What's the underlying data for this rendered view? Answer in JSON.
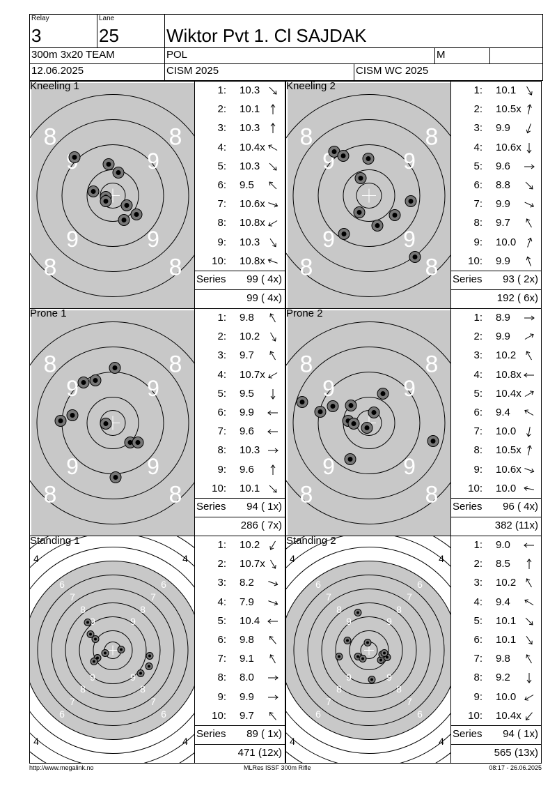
{
  "header": {
    "relay_label": "Relay",
    "relay_value": "3",
    "lane_label": "Lane",
    "lane_value": "25",
    "shooter_name": "Wiktor Pvt 1. Cl SAJDAK",
    "event": "300m 3x20 TEAM",
    "nation": "POL",
    "gender": "M",
    "date": "12.06.2025",
    "competition": "CISM 2025",
    "match": "CISM WC 2025"
  },
  "panels": [
    {
      "title": "Kneeling 1",
      "type": "prone",
      "shots": [
        {
          "n": "1:",
          "v": "10.3",
          "dir": 135
        },
        {
          "n": "2:",
          "v": "10.1",
          "dir": 0
        },
        {
          "n": "3:",
          "v": "10.3",
          "dir": 0
        },
        {
          "n": "4:",
          "v": "10.4x",
          "dir": 300
        },
        {
          "n": "5:",
          "v": "10.3",
          "dir": 135
        },
        {
          "n": "6:",
          "v": "9.5",
          "dir": 315
        },
        {
          "n": "7:",
          "v": "10.6x",
          "dir": 110
        },
        {
          "n": "8:",
          "v": "10.8x",
          "dir": 240
        },
        {
          "n": "9:",
          "v": "10.3",
          "dir": 145
        },
        {
          "n": "10:",
          "v": "10.8x",
          "dir": 290
        }
      ],
      "series_label": "Series",
      "series": "99 ( 4x)",
      "total": "99 ( 4x)",
      "holes": [
        [
          -55,
          -55
        ],
        [
          -6,
          -45
        ],
        [
          8,
          -33
        ],
        [
          -28,
          -6
        ],
        [
          -10,
          2
        ],
        [
          -10,
          8
        ],
        [
          20,
          14
        ],
        [
          34,
          27
        ],
        [
          16,
          35
        ]
      ]
    },
    {
      "title": "Kneeling 2",
      "type": "prone",
      "shots": [
        {
          "n": "1:",
          "v": "10.1",
          "dir": 150
        },
        {
          "n": "2:",
          "v": "10.5x",
          "dir": 10
        },
        {
          "n": "3:",
          "v": "9.9",
          "dir": 200
        },
        {
          "n": "4:",
          "v": "10.6x",
          "dir": 180
        },
        {
          "n": "5:",
          "v": "9.6",
          "dir": 90
        },
        {
          "n": "6:",
          "v": "8.8",
          "dir": 135
        },
        {
          "n": "7:",
          "v": "9.9",
          "dir": 115
        },
        {
          "n": "8:",
          "v": "9.7",
          "dir": 330
        },
        {
          "n": "9:",
          "v": "10.0",
          "dir": 20
        },
        {
          "n": "10:",
          "v": "9.9",
          "dir": 340
        }
      ],
      "series_label": "Series",
      "series": "93 ( 2x)",
      "total": "192 ( 6x)",
      "holes": [
        [
          -50,
          -63
        ],
        [
          -37,
          -57
        ],
        [
          -1,
          -53
        ],
        [
          -12,
          -25
        ],
        [
          -14,
          24
        ],
        [
          60,
          8
        ],
        [
          37,
          28
        ],
        [
          12,
          43
        ],
        [
          -36,
          55
        ],
        [
          66,
          88
        ]
      ]
    },
    {
      "title": "Prone 1",
      "type": "prone",
      "shots": [
        {
          "n": "1:",
          "v": "9.8",
          "dir": 330
        },
        {
          "n": "2:",
          "v": "10.2",
          "dir": 150
        },
        {
          "n": "3:",
          "v": "9.7",
          "dir": 330
        },
        {
          "n": "4:",
          "v": "10.7x",
          "dir": 240
        },
        {
          "n": "5:",
          "v": "9.5",
          "dir": 180
        },
        {
          "n": "6:",
          "v": "9.9",
          "dir": 270
        },
        {
          "n": "7:",
          "v": "9.6",
          "dir": 270
        },
        {
          "n": "8:",
          "v": "10.3",
          "dir": 90
        },
        {
          "n": "9:",
          "v": "9.6",
          "dir": 0
        },
        {
          "n": "10:",
          "v": "10.1",
          "dir": 135
        }
      ],
      "series_label": "Series",
      "series": "94 ( 1x)",
      "total": "286 ( 7x)",
      "holes": [
        [
          3,
          -79
        ],
        [
          -42,
          -58
        ],
        [
          -25,
          -61
        ],
        [
          -58,
          -11
        ],
        [
          -75,
          -3
        ],
        [
          -10,
          1
        ],
        [
          25,
          28
        ],
        [
          36,
          28
        ],
        [
          4,
          78
        ]
      ]
    },
    {
      "title": "Prone 2",
      "type": "prone",
      "shots": [
        {
          "n": "1:",
          "v": "8.9",
          "dir": 90
        },
        {
          "n": "2:",
          "v": "9.9",
          "dir": 60
        },
        {
          "n": "3:",
          "v": "10.2",
          "dir": 330
        },
        {
          "n": "4:",
          "v": "10.8x",
          "dir": 270
        },
        {
          "n": "5:",
          "v": "10.4x",
          "dir": 60
        },
        {
          "n": "6:",
          "v": "9.4",
          "dir": 300
        },
        {
          "n": "7:",
          "v": "10.0",
          "dir": 190
        },
        {
          "n": "8:",
          "v": "10.5x",
          "dir": 10
        },
        {
          "n": "9:",
          "v": "10.6x",
          "dir": 110
        },
        {
          "n": "10:",
          "v": "10.0",
          "dir": 280
        }
      ],
      "series_label": "Series",
      "series": "96 ( 4x)",
      "total": "382 (11x)",
      "holes": [
        [
          -96,
          -30
        ],
        [
          -70,
          -16
        ],
        [
          -52,
          -24
        ],
        [
          -26,
          -25
        ],
        [
          7,
          -15
        ],
        [
          20,
          -42
        ],
        [
          -30,
          -3
        ],
        [
          -22,
          1
        ],
        [
          -3,
          7
        ],
        [
          -27,
          52
        ],
        [
          92,
          26
        ]
      ]
    },
    {
      "title": "Standing 1",
      "type": "standing",
      "shots": [
        {
          "n": "1:",
          "v": "10.2",
          "dir": 210
        },
        {
          "n": "2:",
          "v": "10.7x",
          "dir": 150
        },
        {
          "n": "3:",
          "v": "8.2",
          "dir": 110
        },
        {
          "n": "4:",
          "v": "7.9",
          "dir": 110
        },
        {
          "n": "5:",
          "v": "10.4",
          "dir": 270
        },
        {
          "n": "6:",
          "v": "9.8",
          "dir": 320
        },
        {
          "n": "7:",
          "v": "9.1",
          "dir": 330
        },
        {
          "n": "8:",
          "v": "8.0",
          "dir": 90
        },
        {
          "n": "9:",
          "v": "9.9",
          "dir": 90
        },
        {
          "n": "10:",
          "v": "9.7",
          "dir": 320
        }
      ],
      "series_label": "Series",
      "series": "89 ( 1x)",
      "total": "471 (12x)",
      "holes": [
        [
          -36,
          -40
        ],
        [
          -32,
          -23
        ],
        [
          -25,
          -16
        ],
        [
          -11,
          4
        ],
        [
          12,
          -1
        ],
        [
          -22,
          11
        ],
        [
          -27,
          16
        ],
        [
          53,
          8
        ],
        [
          52,
          23
        ],
        [
          40,
          33
        ]
      ]
    },
    {
      "title": "Standing 2",
      "type": "standing",
      "shots": [
        {
          "n": "1:",
          "v": "9.0",
          "dir": 270
        },
        {
          "n": "2:",
          "v": "8.5",
          "dir": 0
        },
        {
          "n": "3:",
          "v": "10.2",
          "dir": 330
        },
        {
          "n": "4:",
          "v": "9.4",
          "dir": 300
        },
        {
          "n": "5:",
          "v": "10.1",
          "dir": 135
        },
        {
          "n": "6:",
          "v": "10.1",
          "dir": 145
        },
        {
          "n": "7:",
          "v": "9.8",
          "dir": 330
        },
        {
          "n": "8:",
          "v": "9.2",
          "dir": 180
        },
        {
          "n": "9:",
          "v": "10.0",
          "dir": 240
        },
        {
          "n": "10:",
          "v": "10.4x",
          "dir": 220
        }
      ],
      "series_label": "Series",
      "series": "94 ( 1x)",
      "total": "565 (13x)",
      "holes": [
        [
          -16,
          -54
        ],
        [
          -31,
          -14
        ],
        [
          -2,
          -11
        ],
        [
          -43,
          9
        ],
        [
          -16,
          9
        ],
        [
          -9,
          12
        ],
        [
          26,
          10
        ],
        [
          17,
          14
        ],
        [
          19,
          6
        ],
        [
          22,
          4
        ],
        [
          4,
          42
        ]
      ]
    }
  ],
  "footer": {
    "left": "http://www.megalink.no",
    "center": "MLRes ISSF 300m Rifle",
    "right": "08:17 - 26.06.2025"
  }
}
